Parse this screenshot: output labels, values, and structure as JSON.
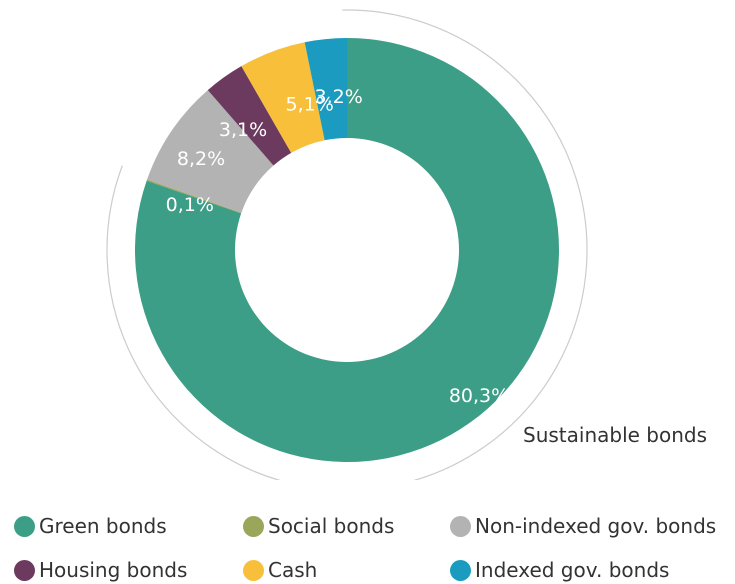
{
  "chart_data": {
    "type": "pie",
    "variant": "donut",
    "title": "",
    "categories": [
      "Green bonds",
      "Social bonds",
      "Non-indexed gov. bonds",
      "Housing bonds",
      "Cash",
      "Indexed gov. bonds"
    ],
    "values": [
      80.3,
      0.1,
      8.2,
      3.1,
      5.1,
      3.2
    ],
    "labels": [
      "80,3%",
      "0,1%",
      "8,2%",
      "3,1%",
      "5,1%",
      "3,2%"
    ],
    "colors": [
      "#3c9e86",
      "#9aa65a",
      "#b3b3b3",
      "#6b3a5e",
      "#f7bf3a",
      "#1a9bbf"
    ],
    "legend_position": "bottom",
    "annotations": [
      {
        "text": "Sustainable bonds",
        "group": [
          "Green bonds",
          "Social bonds"
        ]
      }
    ]
  }
}
